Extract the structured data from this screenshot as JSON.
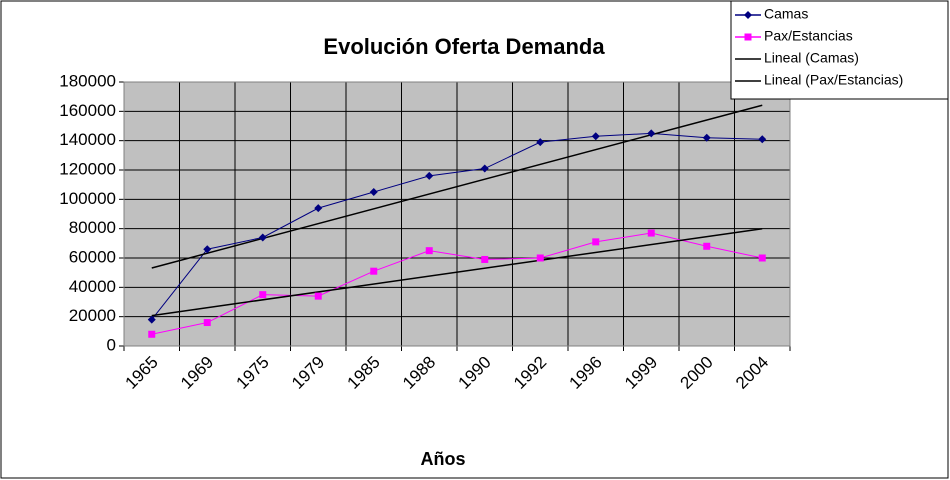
{
  "chart_data": {
    "type": "line",
    "title": "Evolución Oferta Demanda",
    "x_label": "Años",
    "categories": [
      "1965",
      "1969",
      "1975",
      "1979",
      "1985",
      "1988",
      "1990",
      "1992",
      "1996",
      "1999",
      "2000",
      "2004"
    ],
    "series": [
      {
        "name": "Camas",
        "color": "#000080",
        "marker": "diamond",
        "values": [
          18000,
          66000,
          74000,
          94000,
          105000,
          116000,
          121000,
          139000,
          143000,
          145000,
          142000,
          141000
        ],
        "trendline": {
          "name": "Lineal (Camas)",
          "color": "#000000"
        }
      },
      {
        "name": "Pax/Estancias",
        "color": "#ff00ff",
        "marker": "square",
        "values": [
          8000,
          16000,
          35000,
          34000,
          51000,
          65000,
          59000,
          60000,
          71000,
          77000,
          68000,
          60000
        ],
        "trendline": {
          "name": "Lineal (Pax/Estancias)",
          "color": "#000000"
        }
      }
    ],
    "ylim": [
      0,
      180000
    ],
    "yticks": [
      0,
      20000,
      40000,
      60000,
      80000,
      100000,
      120000,
      140000,
      160000,
      180000
    ],
    "grid": true,
    "plot_background": "#c0c0c0",
    "legend": "top-right"
  }
}
